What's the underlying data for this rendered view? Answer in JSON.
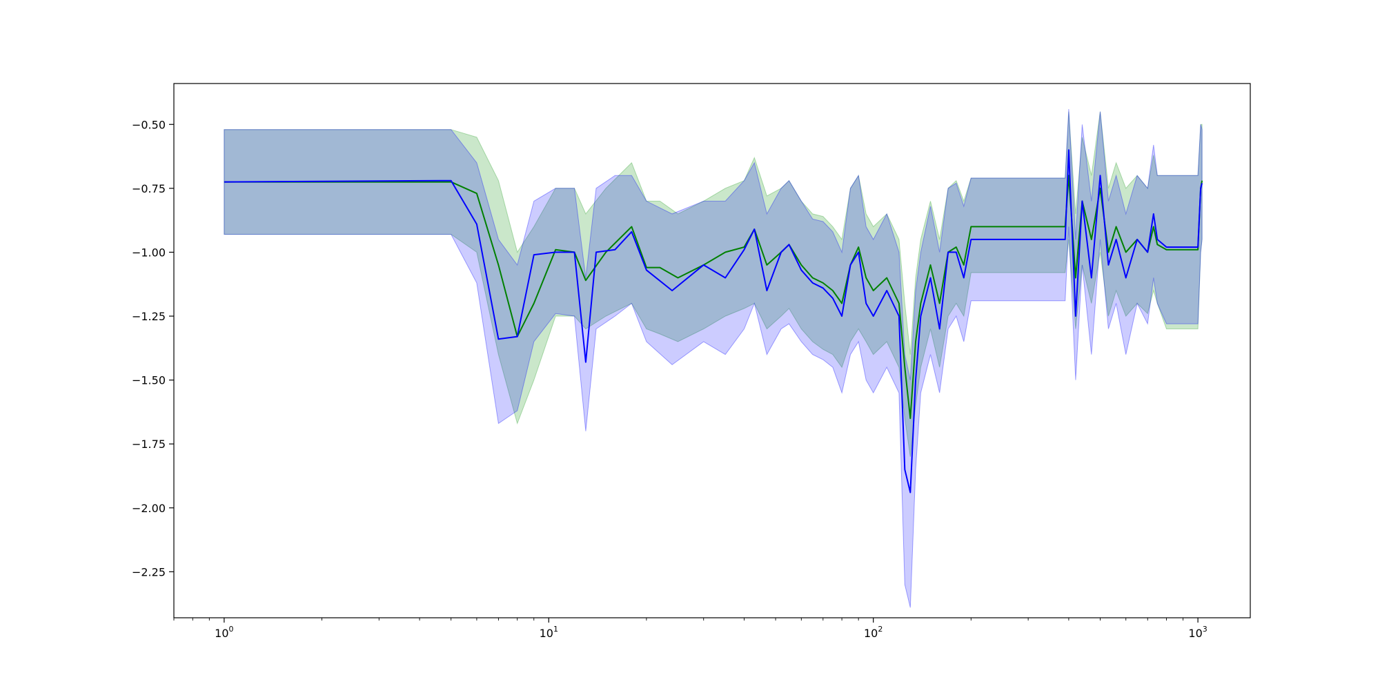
{
  "chart_data": {
    "type": "line",
    "title": "",
    "xlabel": "",
    "ylabel": "",
    "xscale": "log",
    "xlim": [
      0.7,
      1450
    ],
    "ylim": [
      -2.43,
      -0.34
    ],
    "grid": false,
    "legend": "none",
    "x_ticks": [
      {
        "value": 1,
        "base": "10",
        "exp": "0"
      },
      {
        "value": 10,
        "base": "10",
        "exp": "1"
      },
      {
        "value": 100,
        "base": "10",
        "exp": "2"
      },
      {
        "value": 1000,
        "base": "10",
        "exp": "3"
      }
    ],
    "y_ticks": [
      {
        "value": -0.5,
        "label": "−0.50"
      },
      {
        "value": -0.75,
        "label": "−0.75"
      },
      {
        "value": -1.0,
        "label": "−1.00"
      },
      {
        "value": -1.25,
        "label": "−1.25"
      },
      {
        "value": -1.5,
        "label": "−1.50"
      },
      {
        "value": -1.75,
        "label": "−1.75"
      },
      {
        "value": -2.0,
        "label": "−2.00"
      },
      {
        "value": -2.25,
        "label": "−2.25"
      }
    ],
    "series": [
      {
        "color": "#008000",
        "band_color": "#2ca02c",
        "x": [
          1,
          5,
          6,
          7,
          8,
          9,
          10.5,
          12,
          13,
          15,
          18,
          20,
          22,
          25,
          30,
          35,
          40,
          43,
          47,
          52,
          55,
          60,
          65,
          70,
          75,
          80,
          85,
          90,
          95,
          100,
          110,
          120,
          125,
          130,
          135,
          140,
          150,
          160,
          170,
          180,
          190,
          200,
          250,
          300,
          390,
          400,
          420,
          440,
          470,
          500,
          530,
          560,
          600,
          650,
          700,
          730,
          750,
          800,
          900,
          1000,
          1020,
          1030
        ],
        "values": [
          -0.725,
          -0.725,
          -0.77,
          -1.05,
          -1.33,
          -1.2,
          -0.99,
          -1.0,
          -1.11,
          -1.0,
          -0.9,
          -1.06,
          -1.06,
          -1.1,
          -1.05,
          -1.0,
          -0.98,
          -0.91,
          -1.05,
          -1.0,
          -0.97,
          -1.05,
          -1.1,
          -1.12,
          -1.15,
          -1.2,
          -1.05,
          -0.98,
          -1.1,
          -1.15,
          -1.1,
          -1.2,
          -1.45,
          -1.65,
          -1.35,
          -1.2,
          -1.05,
          -1.2,
          -1.0,
          -0.98,
          -1.05,
          -0.9,
          -0.9,
          -0.9,
          -0.9,
          -0.7,
          -1.1,
          -0.8,
          -0.95,
          -0.75,
          -1.0,
          -0.9,
          -1.0,
          -0.95,
          -1.0,
          -0.9,
          -0.97,
          -0.99,
          -0.99,
          -0.99,
          -0.75,
          -0.72
        ],
        "lower": [
          -0.93,
          -0.93,
          -1.0,
          -1.4,
          -1.67,
          -1.5,
          -1.25,
          -1.25,
          -1.3,
          -1.25,
          -1.2,
          -1.3,
          -1.32,
          -1.35,
          -1.3,
          -1.25,
          -1.22,
          -1.2,
          -1.3,
          -1.25,
          -1.22,
          -1.3,
          -1.35,
          -1.38,
          -1.4,
          -1.45,
          -1.35,
          -1.3,
          -1.35,
          -1.4,
          -1.35,
          -1.45,
          -1.65,
          -1.8,
          -1.6,
          -1.45,
          -1.3,
          -1.45,
          -1.25,
          -1.2,
          -1.25,
          -1.08,
          -1.08,
          -1.08,
          -1.08,
          -0.95,
          -1.3,
          -1.05,
          -1.2,
          -1.0,
          -1.25,
          -1.15,
          -1.25,
          -1.2,
          -1.24,
          -1.15,
          -1.2,
          -1.3,
          -1.3,
          -1.3,
          -1.0,
          -0.95
        ],
        "upper": [
          -0.52,
          -0.52,
          -0.55,
          -0.72,
          -1.0,
          -0.9,
          -0.75,
          -0.75,
          -0.85,
          -0.75,
          -0.65,
          -0.8,
          -0.8,
          -0.85,
          -0.8,
          -0.75,
          -0.72,
          -0.63,
          -0.78,
          -0.75,
          -0.72,
          -0.8,
          -0.85,
          -0.86,
          -0.9,
          -0.95,
          -0.75,
          -0.7,
          -0.85,
          -0.9,
          -0.85,
          -0.95,
          -1.2,
          -1.4,
          -1.1,
          -0.95,
          -0.8,
          -0.95,
          -0.75,
          -0.72,
          -0.8,
          -0.71,
          -0.71,
          -0.71,
          -0.71,
          -0.45,
          -0.85,
          -0.55,
          -0.7,
          -0.45,
          -0.75,
          -0.65,
          -0.75,
          -0.7,
          -0.75,
          -0.62,
          -0.7,
          -0.7,
          -0.7,
          -0.7,
          -0.5,
          -0.5
        ]
      },
      {
        "color": "#0000ff",
        "band_color": "#0000ff",
        "x": [
          1,
          5,
          6,
          7,
          8,
          9,
          10.5,
          12,
          13,
          14,
          16,
          18,
          20,
          24,
          30,
          35,
          40,
          43,
          47,
          52,
          55,
          60,
          65,
          70,
          75,
          80,
          85,
          90,
          95,
          100,
          110,
          120,
          125,
          130,
          135,
          140,
          150,
          160,
          170,
          180,
          190,
          200,
          250,
          300,
          390,
          400,
          420,
          440,
          470,
          500,
          530,
          560,
          600,
          650,
          700,
          730,
          750,
          800,
          900,
          1000,
          1020,
          1030
        ],
        "values": [
          -0.725,
          -0.72,
          -0.89,
          -1.34,
          -1.33,
          -1.01,
          -1.0,
          -1.0,
          -1.43,
          -1.0,
          -0.99,
          -0.92,
          -1.07,
          -1.15,
          -1.05,
          -1.1,
          -0.99,
          -0.91,
          -1.15,
          -1.0,
          -0.97,
          -1.07,
          -1.12,
          -1.14,
          -1.18,
          -1.25,
          -1.05,
          -1.0,
          -1.2,
          -1.25,
          -1.15,
          -1.25,
          -1.85,
          -1.94,
          -1.5,
          -1.25,
          -1.1,
          -1.3,
          -1.0,
          -1.0,
          -1.1,
          -0.95,
          -0.95,
          -0.95,
          -0.95,
          -0.6,
          -1.25,
          -0.8,
          -1.1,
          -0.7,
          -1.05,
          -0.95,
          -1.1,
          -0.95,
          -1.0,
          -0.85,
          -0.95,
          -0.98,
          -0.98,
          -0.98,
          -0.75,
          -0.73
        ],
        "lower": [
          -0.93,
          -0.93,
          -1.12,
          -1.67,
          -1.62,
          -1.35,
          -1.24,
          -1.25,
          -1.7,
          -1.3,
          -1.25,
          -1.2,
          -1.35,
          -1.44,
          -1.35,
          -1.4,
          -1.3,
          -1.2,
          -1.4,
          -1.3,
          -1.28,
          -1.35,
          -1.4,
          -1.42,
          -1.45,
          -1.55,
          -1.4,
          -1.35,
          -1.5,
          -1.55,
          -1.45,
          -1.55,
          -2.3,
          -2.39,
          -1.85,
          -1.55,
          -1.4,
          -1.55,
          -1.3,
          -1.25,
          -1.35,
          -1.19,
          -1.19,
          -1.19,
          -1.19,
          -0.9,
          -1.5,
          -1.05,
          -1.4,
          -0.95,
          -1.3,
          -1.2,
          -1.4,
          -1.2,
          -1.28,
          -1.1,
          -1.2,
          -1.28,
          -1.28,
          -1.28,
          -1.0,
          -0.95
        ],
        "upper": [
          -0.52,
          -0.52,
          -0.65,
          -0.95,
          -1.05,
          -0.8,
          -0.75,
          -0.75,
          -1.1,
          -0.75,
          -0.7,
          -0.7,
          -0.8,
          -0.85,
          -0.8,
          -0.8,
          -0.72,
          -0.65,
          -0.85,
          -0.75,
          -0.72,
          -0.8,
          -0.87,
          -0.88,
          -0.92,
          -1.0,
          -0.75,
          -0.7,
          -0.9,
          -0.95,
          -0.85,
          -1.0,
          -1.4,
          -1.5,
          -1.15,
          -1.0,
          -0.82,
          -1.0,
          -0.75,
          -0.73,
          -0.82,
          -0.71,
          -0.71,
          -0.71,
          -0.71,
          -0.44,
          -0.95,
          -0.5,
          -0.8,
          -0.45,
          -0.8,
          -0.7,
          -0.85,
          -0.7,
          -0.75,
          -0.58,
          -0.7,
          -0.7,
          -0.7,
          -0.7,
          -0.5,
          -0.52
        ]
      }
    ]
  }
}
